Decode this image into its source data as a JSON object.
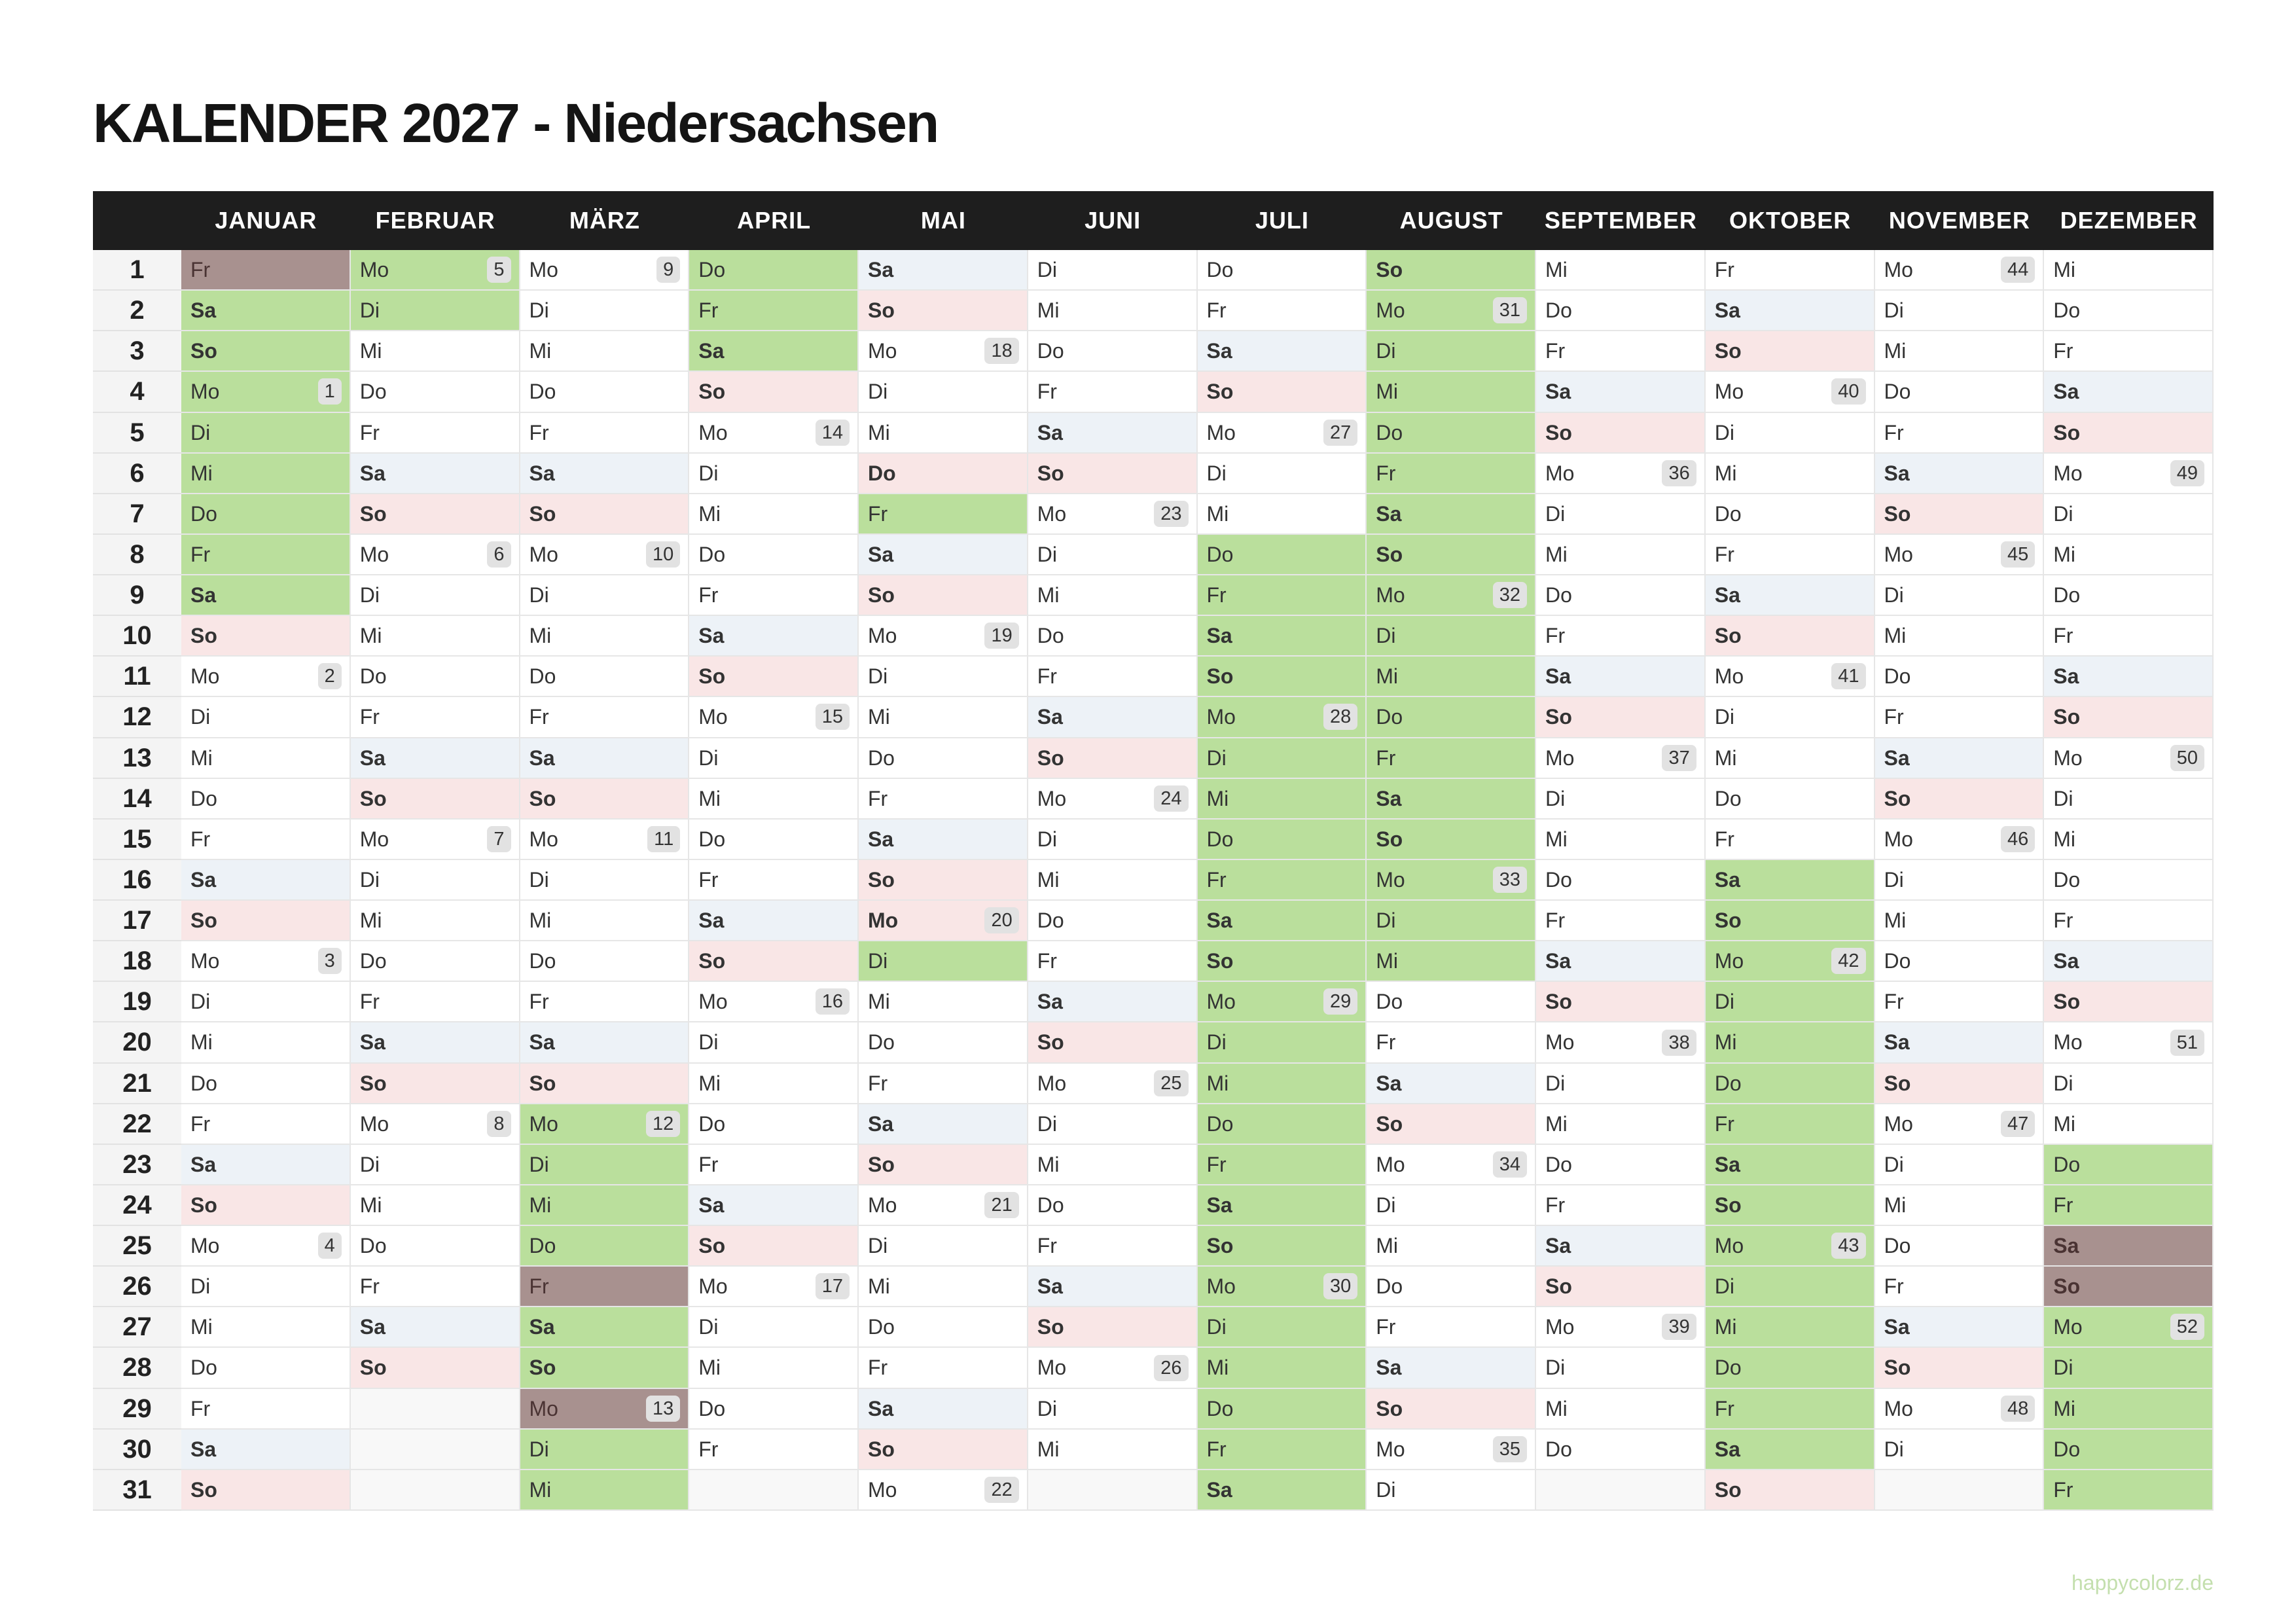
{
  "title": "KALENDER 2027 - Niedersachsen",
  "footer": "happycolorz.de",
  "weekend_colors": {
    "Sa": "#edf2f7",
    "So": "#f9e6e6"
  },
  "rows": [
    1,
    2,
    3,
    4,
    5,
    6,
    7,
    8,
    9,
    10,
    11,
    12,
    13,
    14,
    15,
    16,
    17,
    18,
    19,
    20,
    21,
    22,
    23,
    24,
    25,
    26,
    27,
    28,
    29,
    30,
    31
  ],
  "months": [
    {
      "name": "JANUAR",
      "days": [
        {
          "d": "Fr",
          "c": "#a8918f"
        },
        {
          "d": "Sa",
          "c": "#badf9c"
        },
        {
          "d": "So",
          "c": "#badf9c"
        },
        {
          "d": "Mo",
          "w": 1,
          "c": "#badf9c"
        },
        {
          "d": "Di",
          "c": "#badf9c"
        },
        {
          "d": "Mi",
          "c": "#badf9c"
        },
        {
          "d": "Do",
          "c": "#badf9c"
        },
        {
          "d": "Fr",
          "c": "#badf9c"
        },
        {
          "d": "Sa",
          "c": "#badf9c"
        },
        {
          "d": "So"
        },
        {
          "d": "Mo",
          "w": 2
        },
        {
          "d": "Di"
        },
        {
          "d": "Mi"
        },
        {
          "d": "Do"
        },
        {
          "d": "Fr"
        },
        {
          "d": "Sa"
        },
        {
          "d": "So"
        },
        {
          "d": "Mo",
          "w": 3
        },
        {
          "d": "Di"
        },
        {
          "d": "Mi"
        },
        {
          "d": "Do"
        },
        {
          "d": "Fr"
        },
        {
          "d": "Sa"
        },
        {
          "d": "So"
        },
        {
          "d": "Mo",
          "w": 4
        },
        {
          "d": "Di"
        },
        {
          "d": "Mi"
        },
        {
          "d": "Do"
        },
        {
          "d": "Fr"
        },
        {
          "d": "Sa"
        },
        {
          "d": "So"
        }
      ]
    },
    {
      "name": "FEBRUAR",
      "days": [
        {
          "d": "Mo",
          "w": 5,
          "c": "#badf9c"
        },
        {
          "d": "Di",
          "c": "#badf9c"
        },
        {
          "d": "Mi"
        },
        {
          "d": "Do"
        },
        {
          "d": "Fr"
        },
        {
          "d": "Sa"
        },
        {
          "d": "So"
        },
        {
          "d": "Mo",
          "w": 6
        },
        {
          "d": "Di"
        },
        {
          "d": "Mi"
        },
        {
          "d": "Do"
        },
        {
          "d": "Fr"
        },
        {
          "d": "Sa"
        },
        {
          "d": "So"
        },
        {
          "d": "Mo",
          "w": 7
        },
        {
          "d": "Di"
        },
        {
          "d": "Mi"
        },
        {
          "d": "Do"
        },
        {
          "d": "Fr"
        },
        {
          "d": "Sa"
        },
        {
          "d": "So"
        },
        {
          "d": "Mo",
          "w": 8
        },
        {
          "d": "Di"
        },
        {
          "d": "Mi"
        },
        {
          "d": "Do"
        },
        {
          "d": "Fr"
        },
        {
          "d": "Sa"
        },
        {
          "d": "So"
        }
      ]
    },
    {
      "name": "MÄRZ",
      "days": [
        {
          "d": "Mo",
          "w": 9
        },
        {
          "d": "Di"
        },
        {
          "d": "Mi"
        },
        {
          "d": "Do"
        },
        {
          "d": "Fr"
        },
        {
          "d": "Sa"
        },
        {
          "d": "So"
        },
        {
          "d": "Mo",
          "w": 10
        },
        {
          "d": "Di"
        },
        {
          "d": "Mi"
        },
        {
          "d": "Do"
        },
        {
          "d": "Fr"
        },
        {
          "d": "Sa"
        },
        {
          "d": "So"
        },
        {
          "d": "Mo",
          "w": 11
        },
        {
          "d": "Di"
        },
        {
          "d": "Mi"
        },
        {
          "d": "Do"
        },
        {
          "d": "Fr"
        },
        {
          "d": "Sa"
        },
        {
          "d": "So"
        },
        {
          "d": "Mo",
          "w": 12,
          "c": "#badf9c"
        },
        {
          "d": "Di",
          "c": "#badf9c"
        },
        {
          "d": "Mi",
          "c": "#badf9c"
        },
        {
          "d": "Do",
          "c": "#badf9c"
        },
        {
          "d": "Fr",
          "c": "#a8918f"
        },
        {
          "d": "Sa",
          "c": "#badf9c"
        },
        {
          "d": "So",
          "c": "#badf9c"
        },
        {
          "d": "Mo",
          "w": 13,
          "c": "#a8918f"
        },
        {
          "d": "Di",
          "c": "#badf9c"
        },
        {
          "d": "Mi",
          "c": "#badf9c"
        }
      ]
    },
    {
      "name": "APRIL",
      "days": [
        {
          "d": "Do",
          "c": "#badf9c"
        },
        {
          "d": "Fr",
          "c": "#badf9c"
        },
        {
          "d": "Sa",
          "c": "#badf9c"
        },
        {
          "d": "So"
        },
        {
          "d": "Mo",
          "w": 14
        },
        {
          "d": "Di"
        },
        {
          "d": "Mi"
        },
        {
          "d": "Do"
        },
        {
          "d": "Fr"
        },
        {
          "d": "Sa"
        },
        {
          "d": "So"
        },
        {
          "d": "Mo",
          "w": 15
        },
        {
          "d": "Di"
        },
        {
          "d": "Mi"
        },
        {
          "d": "Do"
        },
        {
          "d": "Fr"
        },
        {
          "d": "Sa"
        },
        {
          "d": "So"
        },
        {
          "d": "Mo",
          "w": 16
        },
        {
          "d": "Di"
        },
        {
          "d": "Mi"
        },
        {
          "d": "Do"
        },
        {
          "d": "Fr"
        },
        {
          "d": "Sa"
        },
        {
          "d": "So"
        },
        {
          "d": "Mo",
          "w": 17
        },
        {
          "d": "Di"
        },
        {
          "d": "Mi"
        },
        {
          "d": "Do"
        },
        {
          "d": "Fr"
        }
      ]
    },
    {
      "name": "MAI",
      "days": [
        {
          "d": "Sa"
        },
        {
          "d": "So"
        },
        {
          "d": "Mo",
          "w": 18
        },
        {
          "d": "Di"
        },
        {
          "d": "Mi"
        },
        {
          "d": "Do",
          "c": "#f9e6e6",
          "b": true
        },
        {
          "d": "Fr",
          "c": "#badf9c"
        },
        {
          "d": "Sa"
        },
        {
          "d": "So"
        },
        {
          "d": "Mo",
          "w": 19
        },
        {
          "d": "Di"
        },
        {
          "d": "Mi"
        },
        {
          "d": "Do"
        },
        {
          "d": "Fr"
        },
        {
          "d": "Sa"
        },
        {
          "d": "So"
        },
        {
          "d": "Mo",
          "w": 20,
          "c": "#f9e6e6",
          "b": true
        },
        {
          "d": "Di",
          "c": "#badf9c"
        },
        {
          "d": "Mi"
        },
        {
          "d": "Do"
        },
        {
          "d": "Fr"
        },
        {
          "d": "Sa"
        },
        {
          "d": "So"
        },
        {
          "d": "Mo",
          "w": 21
        },
        {
          "d": "Di"
        },
        {
          "d": "Mi"
        },
        {
          "d": "Do"
        },
        {
          "d": "Fr"
        },
        {
          "d": "Sa"
        },
        {
          "d": "So"
        },
        {
          "d": "Mo",
          "w": 22
        }
      ]
    },
    {
      "name": "JUNI",
      "days": [
        {
          "d": "Di"
        },
        {
          "d": "Mi"
        },
        {
          "d": "Do"
        },
        {
          "d": "Fr"
        },
        {
          "d": "Sa"
        },
        {
          "d": "So"
        },
        {
          "d": "Mo",
          "w": 23
        },
        {
          "d": "Di"
        },
        {
          "d": "Mi"
        },
        {
          "d": "Do"
        },
        {
          "d": "Fr"
        },
        {
          "d": "Sa"
        },
        {
          "d": "So"
        },
        {
          "d": "Mo",
          "w": 24
        },
        {
          "d": "Di"
        },
        {
          "d": "Mi"
        },
        {
          "d": "Do"
        },
        {
          "d": "Fr"
        },
        {
          "d": "Sa"
        },
        {
          "d": "So"
        },
        {
          "d": "Mo",
          "w": 25
        },
        {
          "d": "Di"
        },
        {
          "d": "Mi"
        },
        {
          "d": "Do"
        },
        {
          "d": "Fr"
        },
        {
          "d": "Sa"
        },
        {
          "d": "So"
        },
        {
          "d": "Mo",
          "w": 26
        },
        {
          "d": "Di"
        },
        {
          "d": "Mi"
        }
      ]
    },
    {
      "name": "JULI",
      "days": [
        {
          "d": "Do"
        },
        {
          "d": "Fr"
        },
        {
          "d": "Sa"
        },
        {
          "d": "So"
        },
        {
          "d": "Mo",
          "w": 27
        },
        {
          "d": "Di"
        },
        {
          "d": "Mi"
        },
        {
          "d": "Do",
          "c": "#badf9c"
        },
        {
          "d": "Fr",
          "c": "#badf9c"
        },
        {
          "d": "Sa",
          "c": "#badf9c"
        },
        {
          "d": "So",
          "c": "#badf9c"
        },
        {
          "d": "Mo",
          "w": 28,
          "c": "#badf9c"
        },
        {
          "d": "Di",
          "c": "#badf9c"
        },
        {
          "d": "Mi",
          "c": "#badf9c"
        },
        {
          "d": "Do",
          "c": "#badf9c"
        },
        {
          "d": "Fr",
          "c": "#badf9c"
        },
        {
          "d": "Sa",
          "c": "#badf9c"
        },
        {
          "d": "So",
          "c": "#badf9c"
        },
        {
          "d": "Mo",
          "w": 29,
          "c": "#badf9c"
        },
        {
          "d": "Di",
          "c": "#badf9c"
        },
        {
          "d": "Mi",
          "c": "#badf9c"
        },
        {
          "d": "Do",
          "c": "#badf9c"
        },
        {
          "d": "Fr",
          "c": "#badf9c"
        },
        {
          "d": "Sa",
          "c": "#badf9c"
        },
        {
          "d": "So",
          "c": "#badf9c"
        },
        {
          "d": "Mo",
          "w": 30,
          "c": "#badf9c"
        },
        {
          "d": "Di",
          "c": "#badf9c"
        },
        {
          "d": "Mi",
          "c": "#badf9c"
        },
        {
          "d": "Do",
          "c": "#badf9c"
        },
        {
          "d": "Fr",
          "c": "#badf9c"
        },
        {
          "d": "Sa",
          "c": "#badf9c"
        }
      ]
    },
    {
      "name": "AUGUST",
      "days": [
        {
          "d": "So",
          "c": "#badf9c"
        },
        {
          "d": "Mo",
          "w": 31,
          "c": "#badf9c"
        },
        {
          "d": "Di",
          "c": "#badf9c"
        },
        {
          "d": "Mi",
          "c": "#badf9c"
        },
        {
          "d": "Do",
          "c": "#badf9c"
        },
        {
          "d": "Fr",
          "c": "#badf9c"
        },
        {
          "d": "Sa",
          "c": "#badf9c"
        },
        {
          "d": "So",
          "c": "#badf9c"
        },
        {
          "d": "Mo",
          "w": 32,
          "c": "#badf9c"
        },
        {
          "d": "Di",
          "c": "#badf9c"
        },
        {
          "d": "Mi",
          "c": "#badf9c"
        },
        {
          "d": "Do",
          "c": "#badf9c"
        },
        {
          "d": "Fr",
          "c": "#badf9c"
        },
        {
          "d": "Sa",
          "c": "#badf9c"
        },
        {
          "d": "So",
          "c": "#badf9c"
        },
        {
          "d": "Mo",
          "w": 33,
          "c": "#badf9c"
        },
        {
          "d": "Di",
          "c": "#badf9c"
        },
        {
          "d": "Mi",
          "c": "#badf9c"
        },
        {
          "d": "Do"
        },
        {
          "d": "Fr"
        },
        {
          "d": "Sa"
        },
        {
          "d": "So"
        },
        {
          "d": "Mo",
          "w": 34
        },
        {
          "d": "Di"
        },
        {
          "d": "Mi"
        },
        {
          "d": "Do"
        },
        {
          "d": "Fr"
        },
        {
          "d": "Sa"
        },
        {
          "d": "So"
        },
        {
          "d": "Mo",
          "w": 35
        },
        {
          "d": "Di"
        }
      ]
    },
    {
      "name": "SEPTEMBER",
      "days": [
        {
          "d": "Mi"
        },
        {
          "d": "Do"
        },
        {
          "d": "Fr"
        },
        {
          "d": "Sa"
        },
        {
          "d": "So"
        },
        {
          "d": "Mo",
          "w": 36
        },
        {
          "d": "Di"
        },
        {
          "d": "Mi"
        },
        {
          "d": "Do"
        },
        {
          "d": "Fr"
        },
        {
          "d": "Sa"
        },
        {
          "d": "So"
        },
        {
          "d": "Mo",
          "w": 37
        },
        {
          "d": "Di"
        },
        {
          "d": "Mi"
        },
        {
          "d": "Do"
        },
        {
          "d": "Fr"
        },
        {
          "d": "Sa"
        },
        {
          "d": "So"
        },
        {
          "d": "Mo",
          "w": 38
        },
        {
          "d": "Di"
        },
        {
          "d": "Mi"
        },
        {
          "d": "Do"
        },
        {
          "d": "Fr"
        },
        {
          "d": "Sa"
        },
        {
          "d": "So"
        },
        {
          "d": "Mo",
          "w": 39
        },
        {
          "d": "Di"
        },
        {
          "d": "Mi"
        },
        {
          "d": "Do"
        }
      ]
    },
    {
      "name": "OKTOBER",
      "days": [
        {
          "d": "Fr"
        },
        {
          "d": "Sa"
        },
        {
          "d": "So"
        },
        {
          "d": "Mo",
          "w": 40
        },
        {
          "d": "Di"
        },
        {
          "d": "Mi"
        },
        {
          "d": "Do"
        },
        {
          "d": "Fr"
        },
        {
          "d": "Sa"
        },
        {
          "d": "So"
        },
        {
          "d": "Mo",
          "w": 41
        },
        {
          "d": "Di"
        },
        {
          "d": "Mi"
        },
        {
          "d": "Do"
        },
        {
          "d": "Fr"
        },
        {
          "d": "Sa",
          "c": "#badf9c"
        },
        {
          "d": "So",
          "c": "#badf9c"
        },
        {
          "d": "Mo",
          "w": 42,
          "c": "#badf9c"
        },
        {
          "d": "Di",
          "c": "#badf9c"
        },
        {
          "d": "Mi",
          "c": "#badf9c"
        },
        {
          "d": "Do",
          "c": "#badf9c"
        },
        {
          "d": "Fr",
          "c": "#badf9c"
        },
        {
          "d": "Sa",
          "c": "#badf9c"
        },
        {
          "d": "So",
          "c": "#badf9c"
        },
        {
          "d": "Mo",
          "w": 43,
          "c": "#badf9c"
        },
        {
          "d": "Di",
          "c": "#badf9c"
        },
        {
          "d": "Mi",
          "c": "#badf9c"
        },
        {
          "d": "Do",
          "c": "#badf9c"
        },
        {
          "d": "Fr",
          "c": "#badf9c"
        },
        {
          "d": "Sa",
          "c": "#badf9c"
        },
        {
          "d": "So"
        }
      ]
    },
    {
      "name": "NOVEMBER",
      "days": [
        {
          "d": "Mo",
          "w": 44
        },
        {
          "d": "Di"
        },
        {
          "d": "Mi"
        },
        {
          "d": "Do"
        },
        {
          "d": "Fr"
        },
        {
          "d": "Sa"
        },
        {
          "d": "So"
        },
        {
          "d": "Mo",
          "w": 45
        },
        {
          "d": "Di"
        },
        {
          "d": "Mi"
        },
        {
          "d": "Do"
        },
        {
          "d": "Fr"
        },
        {
          "d": "Sa"
        },
        {
          "d": "So"
        },
        {
          "d": "Mo",
          "w": 46
        },
        {
          "d": "Di"
        },
        {
          "d": "Mi"
        },
        {
          "d": "Do"
        },
        {
          "d": "Fr"
        },
        {
          "d": "Sa"
        },
        {
          "d": "So"
        },
        {
          "d": "Mo",
          "w": 47
        },
        {
          "d": "Di"
        },
        {
          "d": "Mi"
        },
        {
          "d": "Do"
        },
        {
          "d": "Fr"
        },
        {
          "d": "Sa"
        },
        {
          "d": "So"
        },
        {
          "d": "Mo",
          "w": 48
        },
        {
          "d": "Di"
        }
      ]
    },
    {
      "name": "DEZEMBER",
      "days": [
        {
          "d": "Mi"
        },
        {
          "d": "Do"
        },
        {
          "d": "Fr"
        },
        {
          "d": "Sa"
        },
        {
          "d": "So"
        },
        {
          "d": "Mo",
          "w": 49
        },
        {
          "d": "Di"
        },
        {
          "d": "Mi"
        },
        {
          "d": "Do"
        },
        {
          "d": "Fr"
        },
        {
          "d": "Sa"
        },
        {
          "d": "So"
        },
        {
          "d": "Mo",
          "w": 50
        },
        {
          "d": "Di"
        },
        {
          "d": "Mi"
        },
        {
          "d": "Do"
        },
        {
          "d": "Fr"
        },
        {
          "d": "Sa"
        },
        {
          "d": "So"
        },
        {
          "d": "Mo",
          "w": 51
        },
        {
          "d": "Di"
        },
        {
          "d": "Mi"
        },
        {
          "d": "Do",
          "c": "#badf9c"
        },
        {
          "d": "Fr",
          "c": "#badf9c"
        },
        {
          "d": "Sa",
          "c": "#a8918f"
        },
        {
          "d": "So",
          "c": "#a8918f"
        },
        {
          "d": "Mo",
          "w": 52,
          "c": "#badf9c"
        },
        {
          "d": "Di",
          "c": "#badf9c"
        },
        {
          "d": "Mi",
          "c": "#badf9c"
        },
        {
          "d": "Do",
          "c": "#badf9c"
        },
        {
          "d": "Fr",
          "c": "#badf9c"
        }
      ]
    }
  ]
}
